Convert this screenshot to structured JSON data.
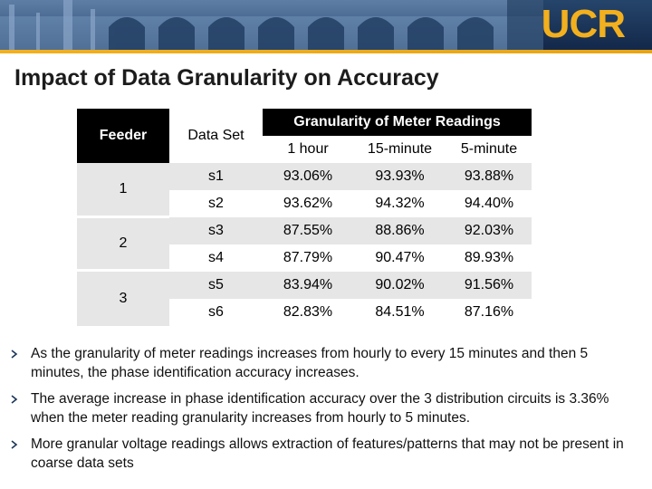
{
  "header": {
    "logo_text": "UCR",
    "brand_colors": {
      "navy": "#1b3558",
      "gold": "#f2b01e"
    }
  },
  "title": "Impact of Data Granularity on Accuracy",
  "table": {
    "col_feeder": "Feeder",
    "col_dataset": "Data Set",
    "group_header": "Granularity of Meter Readings",
    "sub_headers": [
      "1 hour",
      "15-minute",
      "5-minute"
    ],
    "feeders": [
      "1",
      "2",
      "3"
    ],
    "rows": [
      {
        "set": "s1",
        "h1": "93.06%",
        "m15": "93.93%",
        "m5": "93.88%"
      },
      {
        "set": "s2",
        "h1": "93.62%",
        "m15": "94.32%",
        "m5": "94.40%"
      },
      {
        "set": "s3",
        "h1": "87.55%",
        "m15": "88.86%",
        "m5": "92.03%"
      },
      {
        "set": "s4",
        "h1": "87.79%",
        "m15": "90.47%",
        "m5": "89.93%"
      },
      {
        "set": "s5",
        "h1": "83.94%",
        "m15": "90.02%",
        "m5": "91.56%"
      },
      {
        "set": "s6",
        "h1": "82.83%",
        "m15": "84.51%",
        "m5": "87.16%"
      }
    ]
  },
  "bullets": [
    "As the granularity of meter readings increases from hourly to every 15 minutes and then 5 minutes, the phase identification accuracy increases.",
    "The average increase in phase identification accuracy over the 3 distribution circuits is 3.36% when the meter reading granularity increases from hourly to 5 minutes.",
    "More granular voltage readings allows extraction of features/patterns that may not be present in coarse data sets"
  ]
}
